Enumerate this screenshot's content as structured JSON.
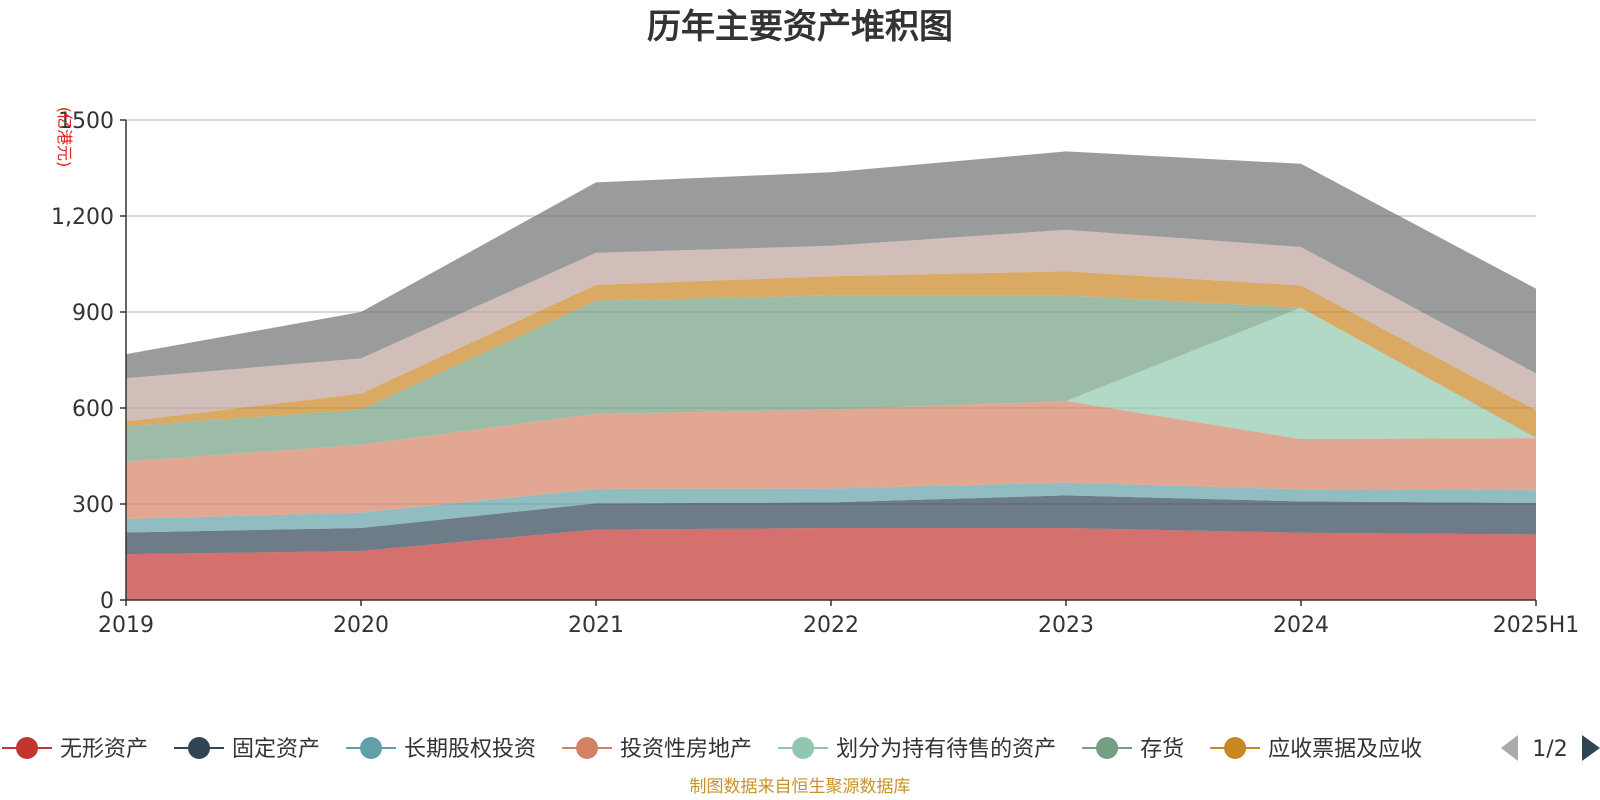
{
  "chart_data": {
    "type": "area",
    "stacked": true,
    "title": "历年主要资产堆积图",
    "unit_label": "(亿港元)",
    "x": [
      "2019",
      "2020",
      "2021",
      "2022",
      "2023",
      "2024",
      "2025H1"
    ],
    "ylim": [
      0,
      1500
    ],
    "yticks": [
      "0",
      "300",
      "600",
      "900",
      "1,200",
      "1500"
    ],
    "grid": true,
    "legend_position": "bottom",
    "series": [
      {
        "name": "无形资产",
        "color": "#c23531",
        "values": [
          143,
          153,
          220,
          225,
          225,
          210,
          205
        ]
      },
      {
        "name": "固定资产",
        "color": "#2f4554",
        "values": [
          68,
          72,
          82,
          80,
          102,
          98,
          98
        ]
      },
      {
        "name": "长期股权投资",
        "color": "#61a0a8",
        "values": [
          42,
          48,
          45,
          43,
          40,
          38,
          40
        ]
      },
      {
        "name": "投资性房地产",
        "color": "#d48265",
        "values": [
          180,
          212,
          235,
          247,
          255,
          157,
          163
        ]
      },
      {
        "name": "划分为持有待售的资产",
        "color": "#91c7ae",
        "values": [
          0,
          0,
          0,
          0,
          0,
          410,
          0
        ]
      },
      {
        "name": "存货",
        "color": "#749f83",
        "values": [
          110,
          110,
          353,
          357,
          330,
          0,
          2
        ]
      },
      {
        "name": "应收票据及应收",
        "color": "#ca8622",
        "values": [
          15,
          50,
          50,
          60,
          75,
          70,
          85
        ]
      },
      {
        "name": "",
        "color": "#bda29a",
        "values": [
          135,
          110,
          100,
          95,
          130,
          120,
          115
        ]
      },
      {
        "name": "",
        "color": "#6e7074",
        "values": [
          75,
          145,
          220,
          230,
          245,
          260,
          265
        ]
      }
    ]
  },
  "legend": {
    "items": [
      "无形资产",
      "固定资产",
      "长期股权投资",
      "投资性房地产",
      "划分为持有待售的资产",
      "存货",
      "应收票据及应收"
    ],
    "page": "1/2"
  },
  "source_note": "制图数据来自恒生聚源数据库"
}
